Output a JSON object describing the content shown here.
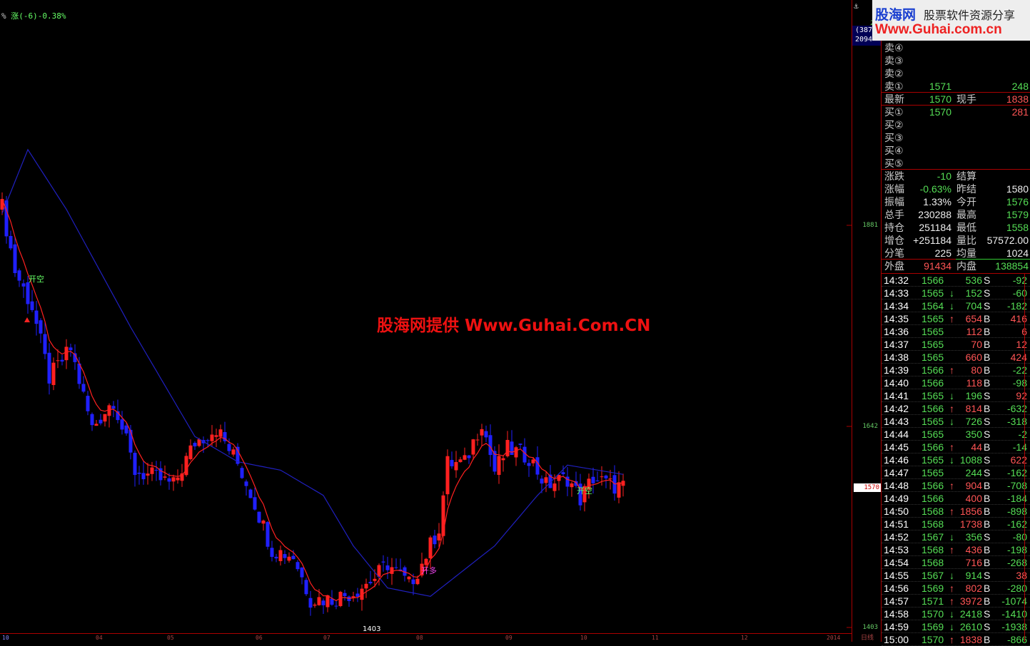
{
  "header": {
    "indicator_prefix": "%",
    "indicator_text": "涨(-6)-0.38%"
  },
  "watermark": {
    "brand": "股海网",
    "slogan": "股票软件资源分享",
    "url": "Www.Guhai.com.cn",
    "center": "股海网提供 Www.Guhai.Com.CN"
  },
  "price_axis": {
    "ticks": [
      "1881",
      "1642",
      "1403"
    ],
    "current": "1570",
    "top_labels": [
      "21",
      "(387",
      "2094"
    ]
  },
  "x_axis": {
    "labels": [
      "10",
      "04",
      "05",
      "06",
      "07",
      "08",
      "09",
      "10",
      "11",
      "12",
      "2014"
    ],
    "period": "日线"
  },
  "signals": [
    {
      "label": "开空",
      "color": "#6f6"
    },
    {
      "label": "开多",
      "color": "#e4e"
    },
    {
      "label": "开空",
      "color": "#6f6"
    }
  ],
  "low_marker": "1403",
  "chart_data": {
    "type": "candlestick",
    "y_ticks": [
      1881,
      1642,
      1403
    ],
    "price_path": [
      {
        "bar": 0,
        "close": 1903
      },
      {
        "bar": 3,
        "close": 1827
      },
      {
        "bar": 7,
        "close": 1784
      },
      {
        "bar": 11,
        "close": 1700
      },
      {
        "bar": 16,
        "close": 1734
      },
      {
        "bar": 21,
        "close": 1640
      },
      {
        "bar": 26,
        "close": 1674
      },
      {
        "bar": 31,
        "close": 1589
      },
      {
        "bar": 36,
        "close": 1581
      },
      {
        "bar": 40,
        "close": 1572
      },
      {
        "bar": 45,
        "close": 1623
      },
      {
        "bar": 50,
        "close": 1640
      },
      {
        "bar": 55,
        "close": 1598
      },
      {
        "bar": 58,
        "close": 1564
      },
      {
        "bar": 63,
        "close": 1496
      },
      {
        "bar": 68,
        "close": 1488
      },
      {
        "bar": 72,
        "close": 1437
      },
      {
        "bar": 77,
        "close": 1437
      },
      {
        "bar": 82,
        "close": 1445
      },
      {
        "bar": 87,
        "close": 1462
      },
      {
        "bar": 90,
        "close": 1479
      },
      {
        "bar": 95,
        "close": 1454
      },
      {
        "bar": 98,
        "close": 1479
      },
      {
        "bar": 102,
        "close": 1522
      },
      {
        "bar": 104,
        "close": 1598
      },
      {
        "bar": 108,
        "close": 1598
      },
      {
        "bar": 112,
        "close": 1649
      },
      {
        "bar": 115,
        "close": 1589
      },
      {
        "bar": 118,
        "close": 1615
      },
      {
        "bar": 123,
        "close": 1606
      },
      {
        "bar": 127,
        "close": 1572
      },
      {
        "bar": 132,
        "close": 1581
      },
      {
        "bar": 135,
        "close": 1556
      },
      {
        "bar": 138,
        "close": 1581
      },
      {
        "bar": 142,
        "close": 1572
      },
      {
        "bar": 145,
        "close": 1570
      }
    ],
    "long_ma_path": [
      {
        "bar": 0,
        "value": 1895
      },
      {
        "bar": 6,
        "value": 1971
      },
      {
        "bar": 15,
        "value": 1900
      },
      {
        "bar": 30,
        "value": 1760
      },
      {
        "bar": 45,
        "value": 1630
      },
      {
        "bar": 55,
        "value": 1600
      },
      {
        "bar": 65,
        "value": 1590
      },
      {
        "bar": 75,
        "value": 1560
      },
      {
        "bar": 82,
        "value": 1500
      },
      {
        "bar": 90,
        "value": 1450
      },
      {
        "bar": 100,
        "value": 1440
      },
      {
        "bar": 115,
        "value": 1500
      },
      {
        "bar": 125,
        "value": 1560
      },
      {
        "bar": 132,
        "value": 1596
      },
      {
        "bar": 145,
        "value": 1585
      }
    ],
    "up_color": "#ff2020",
    "down_color": "#2020ff",
    "long_ma_color": "#2020c0",
    "short_ma_color": "#ff2020"
  },
  "quote": {
    "asks": [
      {
        "label": "卖④",
        "price": "",
        "vol": ""
      },
      {
        "label": "卖③",
        "price": "",
        "vol": ""
      },
      {
        "label": "卖②",
        "price": "",
        "vol": ""
      },
      {
        "label": "卖①",
        "price": "1571",
        "vol": "248"
      }
    ],
    "last": {
      "label": "最新",
      "price": "1570",
      "label2": "现手",
      "vol": "1838"
    },
    "bids": [
      {
        "label": "买①",
        "price": "1570",
        "vol": "281"
      },
      {
        "label": "买②",
        "price": "",
        "vol": ""
      },
      {
        "label": "买③",
        "price": "",
        "vol": ""
      },
      {
        "label": "买④",
        "price": "",
        "vol": ""
      },
      {
        "label": "买⑤",
        "price": "",
        "vol": ""
      }
    ],
    "stats": [
      {
        "l1": "涨跌",
        "v1": "-10",
        "c1": "g",
        "l2": "结算",
        "v2": "",
        "c2": "w"
      },
      {
        "l1": "涨幅",
        "v1": "-0.63%",
        "c1": "g",
        "l2": "昨结",
        "v2": "1580",
        "c2": "w"
      },
      {
        "l1": "振幅",
        "v1": "1.33%",
        "c1": "w",
        "l2": "今开",
        "v2": "1576",
        "c2": "g"
      },
      {
        "l1": "总手",
        "v1": "230288",
        "c1": "w",
        "l2": "最高",
        "v2": "1579",
        "c2": "g"
      },
      {
        "l1": "持仓",
        "v1": "251184",
        "c1": "w",
        "l2": "最低",
        "v2": "1558",
        "c2": "g"
      },
      {
        "l1": "增仓",
        "v1": "+251184",
        "c1": "w",
        "l2": "量比",
        "v2": "57572.00",
        "c2": "w"
      },
      {
        "l1": "分笔",
        "v1": "225",
        "c1": "w",
        "l2": "均量",
        "v2": "1024",
        "c2": "w"
      },
      {
        "l1": "外盘",
        "v1": "91434",
        "c1": "r",
        "l2": "内盘",
        "v2": "138854",
        "c2": "g"
      }
    ]
  },
  "ticks": [
    [
      "14:32",
      "1566",
      "",
      "536",
      "S",
      "-92"
    ],
    [
      "14:33",
      "1565",
      "down",
      "152",
      "S",
      "-60"
    ],
    [
      "14:34",
      "1564",
      "down",
      "704",
      "S",
      "-182"
    ],
    [
      "14:35",
      "1565",
      "up",
      "654",
      "B",
      "416"
    ],
    [
      "14:36",
      "1565",
      "",
      "112",
      "B",
      "6"
    ],
    [
      "14:37",
      "1565",
      "",
      "70",
      "B",
      "12"
    ],
    [
      "14:38",
      "1565",
      "",
      "660",
      "B",
      "424"
    ],
    [
      "14:39",
      "1566",
      "up",
      "80",
      "B",
      "-22"
    ],
    [
      "14:40",
      "1566",
      "",
      "118",
      "B",
      "-98"
    ],
    [
      "14:41",
      "1565",
      "down",
      "196",
      "S",
      "92"
    ],
    [
      "14:42",
      "1566",
      "up",
      "814",
      "B",
      "-632"
    ],
    [
      "14:43",
      "1565",
      "down",
      "726",
      "S",
      "-318"
    ],
    [
      "14:44",
      "1565",
      "",
      "350",
      "S",
      "-2"
    ],
    [
      "14:45",
      "1566",
      "up",
      "44",
      "B",
      "-14"
    ],
    [
      "14:46",
      "1565",
      "down",
      "1088",
      "S",
      "622"
    ],
    [
      "14:47",
      "1565",
      "",
      "244",
      "S",
      "-162"
    ],
    [
      "14:48",
      "1566",
      "up",
      "904",
      "B",
      "-708"
    ],
    [
      "14:49",
      "1566",
      "",
      "400",
      "B",
      "-184"
    ],
    [
      "14:50",
      "1568",
      "up",
      "1856",
      "B",
      "-898"
    ],
    [
      "14:51",
      "1568",
      "",
      "1738",
      "B",
      "-162"
    ],
    [
      "14:52",
      "1567",
      "down",
      "356",
      "S",
      "-80"
    ],
    [
      "14:53",
      "1568",
      "up",
      "436",
      "B",
      "-198"
    ],
    [
      "14:54",
      "1568",
      "",
      "716",
      "B",
      "-268"
    ],
    [
      "14:55",
      "1567",
      "down",
      "914",
      "S",
      "38"
    ],
    [
      "14:56",
      "1569",
      "up",
      "802",
      "B",
      "-280"
    ],
    [
      "14:57",
      "1571",
      "up",
      "3972",
      "B",
      "-1074"
    ],
    [
      "14:58",
      "1570",
      "down",
      "2418",
      "S",
      "-1410"
    ],
    [
      "14:59",
      "1569",
      "down",
      "2610",
      "S",
      "-1938"
    ],
    [
      "15:00",
      "1570",
      "up",
      "1838",
      "B",
      "-866"
    ]
  ]
}
